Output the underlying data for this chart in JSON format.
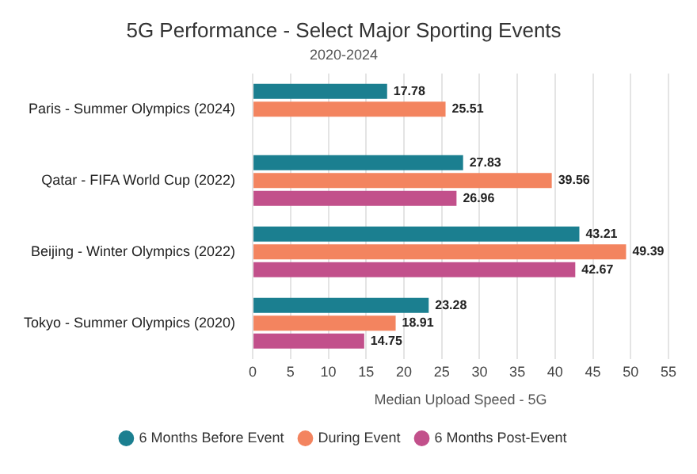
{
  "chart_data": {
    "type": "bar",
    "orientation": "horizontal",
    "title": "5G Performance - Select Major Sporting Events",
    "subtitle": "2020-2024",
    "xlabel": "Median Upload Speed - 5G",
    "categories": [
      "Paris - Summer Olympics (2024)",
      "Qatar - FIFA World Cup (2022)",
      "Beijing - Winter Olympics (2022)",
      "Tokyo - Summer Olympics (2020)"
    ],
    "series": [
      {
        "name": "6 Months Before Event",
        "color": "#1b7f90",
        "values": [
          17.78,
          27.83,
          43.21,
          23.28
        ]
      },
      {
        "name": "During Event",
        "color": "#f3845f",
        "values": [
          25.51,
          39.56,
          49.39,
          18.91
        ]
      },
      {
        "name": "6 Months Post-Event",
        "color": "#c2508b",
        "values": [
          null,
          26.96,
          42.67,
          14.75
        ]
      }
    ],
    "xlim": [
      0,
      55
    ],
    "xticks": [
      0,
      5,
      10,
      15,
      20,
      25,
      30,
      35,
      40,
      45,
      50,
      55
    ],
    "grid": "x",
    "legend": "bottom",
    "data_labels": true
  }
}
